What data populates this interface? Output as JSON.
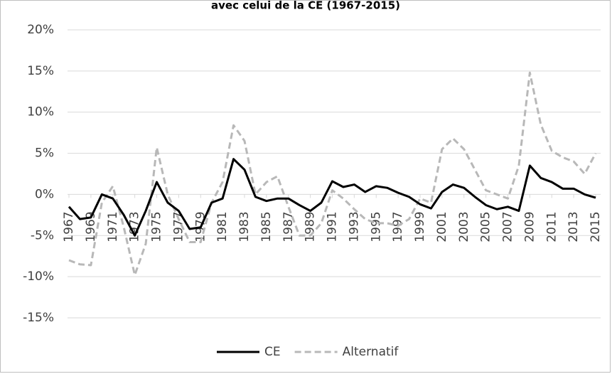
{
  "chart_data": {
    "type": "line",
    "title": "avec celui de la CE (1967-2015)",
    "x": [
      1967,
      1968,
      1969,
      1970,
      1971,
      1972,
      1973,
      1974,
      1975,
      1976,
      1977,
      1978,
      1979,
      1980,
      1981,
      1982,
      1983,
      1984,
      1985,
      1986,
      1987,
      1988,
      1989,
      1990,
      1991,
      1992,
      1993,
      1994,
      1995,
      1996,
      1997,
      1998,
      1999,
      2000,
      2001,
      2002,
      2003,
      2004,
      2005,
      2006,
      2007,
      2008,
      2009,
      2010,
      2011,
      2012,
      2013,
      2014,
      2015
    ],
    "xlim": [
      1967,
      2015
    ],
    "xticks": [
      1967,
      1969,
      1971,
      1973,
      1975,
      1977,
      1979,
      1981,
      1983,
      1985,
      1987,
      1989,
      1991,
      1993,
      1995,
      1997,
      1999,
      2001,
      2003,
      2005,
      2007,
      2009,
      2011,
      2013,
      2015
    ],
    "ylim": [
      -15,
      20
    ],
    "yticks": [
      {
        "value": -15,
        "label": "-15%"
      },
      {
        "value": -10,
        "label": "-10%"
      },
      {
        "value": -5,
        "label": "-5%"
      },
      {
        "value": 0,
        "label": "0%"
      },
      {
        "value": 5,
        "label": "5%"
      },
      {
        "value": 10,
        "label": "10%"
      },
      {
        "value": 15,
        "label": "15%"
      },
      {
        "value": 20,
        "label": "20%"
      }
    ],
    "grid": true,
    "legend": "bottom",
    "series": [
      {
        "name": "CE",
        "color": "#000000",
        "dash": false,
        "values": [
          -1.5,
          -3,
          -2.8,
          0,
          -0.5,
          -2.5,
          -5,
          -2,
          1.5,
          -1,
          -2,
          -4.2,
          -4,
          -1,
          -0.5,
          4.3,
          3,
          -0.3,
          -0.8,
          -0.5,
          -0.5,
          -1.3,
          -2,
          -1,
          1.6,
          0.9,
          1.2,
          0.3,
          1,
          0.8,
          0.2,
          -0.3,
          -1.2,
          -1.7,
          0.3,
          1.2,
          0.8,
          -0.3,
          -1.3,
          -1.8,
          -1.5,
          -2,
          3.5,
          2,
          1.5,
          0.7,
          0.7,
          0,
          -0.4
        ]
      },
      {
        "name": "Alternatif",
        "color": "#b8b8b8",
        "dash": true,
        "values": [
          -8,
          -8.5,
          -8.6,
          -1,
          1,
          -4,
          -9.8,
          -6,
          5.7,
          0,
          -3,
          -5.8,
          -5.8,
          -1,
          1.5,
          8.4,
          6.5,
          0,
          1.5,
          2.2,
          -1.5,
          -5,
          -5,
          -3.5,
          0.5,
          -0.5,
          -1.8,
          -3,
          -3.5,
          -3.5,
          -3.8,
          -3,
          -0.5,
          -1,
          5.5,
          6.8,
          5.5,
          3,
          0.5,
          0,
          -0.5,
          3.5,
          14.8,
          8.5,
          5.3,
          4.5,
          4,
          2.5,
          5
        ]
      }
    ]
  }
}
